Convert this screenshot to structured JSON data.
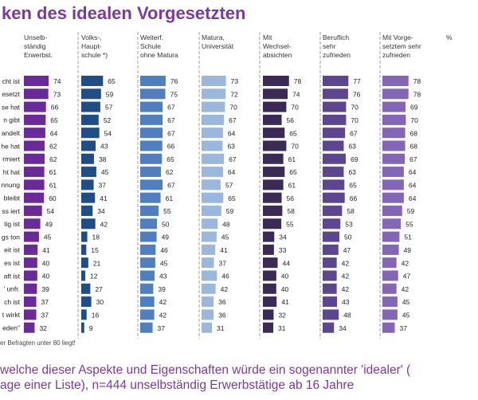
{
  "title": "ken des idealen Vorgesetzten",
  "percent_label": "%",
  "footnote": "er Befragten unter 80 liegt!",
  "source_lines": [
    "welche dieser Aspekte und Eigenschaften würde ein sogenannter 'idealer' (",
    "age einer Liste), n=444 unselbständig Erwerbstätige ab 16 Jahre"
  ],
  "chart_data": {
    "type": "bar",
    "title": "ken des idealen Vorgesetzten",
    "orientation": "horizontal",
    "grid": false,
    "legend": "none",
    "categories": [
      "cht ist",
      "esetzt",
      "se hat",
      "n gibt",
      "andelt",
      "he hat",
      "rmiert",
      "ht hat",
      "nnung",
      "bleibt",
      "ss iert",
      "tig ist",
      "gs ton",
      "eit ist",
      "es ist",
      "aft ist",
      "' unfr.",
      "ch ist",
      "t wirkt",
      "eden\""
    ],
    "series": [
      {
        "name": "Unselb-\nständig\nErwerbst.",
        "color": "#6a2a9a",
        "values": [
          74,
          73,
          66,
          65,
          64,
          62,
          62,
          61,
          61,
          60,
          54,
          49,
          45,
          41,
          40,
          40,
          39,
          37,
          37,
          32
        ]
      },
      {
        "name": "Volks-,\nHaupt-\nschule *)",
        "color": "#1f4d85",
        "values": [
          65,
          59,
          57,
          52,
          54,
          43,
          38,
          45,
          37,
          41,
          34,
          42,
          18,
          15,
          21,
          12,
          27,
          30,
          16,
          9
        ]
      },
      {
        "name": "Weiterf.\nSchule\nohne Matura",
        "color": "#4f7fc0",
        "values": [
          76,
          75,
          67,
          67,
          67,
          66,
          65,
          62,
          67,
          61,
          55,
          50,
          49,
          46,
          45,
          43,
          39,
          42,
          42,
          37
        ]
      },
      {
        "name": "Matura,\nUniversität",
        "color": "#9ab8dd",
        "values": [
          73,
          72,
          70,
          67,
          64,
          63,
          67,
          64,
          57,
          65,
          59,
          48,
          45,
          41,
          37,
          46,
          42,
          36,
          36,
          31
        ]
      },
      {
        "name": "Mit\nWechsel-\nabsichten",
        "color": "#3a2a55",
        "values": [
          78,
          74,
          70,
          56,
          65,
          70,
          61,
          65,
          61,
          56,
          58,
          55,
          34,
          33,
          44,
          40,
          40,
          41,
          32,
          31
        ]
      },
      {
        "name": "Beruflich\nsehr\nzufrieden",
        "color": "#5d4590",
        "values": [
          77,
          76,
          70,
          70,
          67,
          63,
          69,
          63,
          65,
          66,
          58,
          53,
          50,
          47,
          42,
          42,
          42,
          43,
          48,
          34
        ]
      },
      {
        "name": "Mit Vorge-\nsetztem sehr\nzufrieden",
        "color": "#8466b8",
        "values": [
          78,
          78,
          69,
          70,
          68,
          68,
          67,
          64,
          64,
          64,
          59,
          55,
          51,
          49,
          42,
          47,
          42,
          45,
          45,
          37
        ]
      }
    ],
    "xlim": [
      0,
      100
    ]
  }
}
